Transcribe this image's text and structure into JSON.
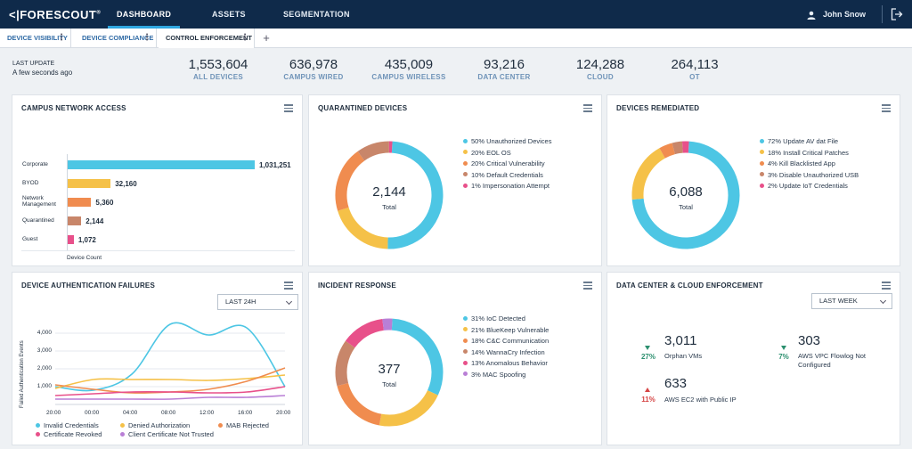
{
  "brand": {
    "name": "FORESCOUT"
  },
  "nav": {
    "items": [
      {
        "label": "DASHBOARD",
        "active": true
      },
      {
        "label": "ASSETS",
        "active": false
      },
      {
        "label": "SEGMENTATION",
        "active": false
      }
    ],
    "user": "John Snow"
  },
  "tabs": [
    {
      "label": "DEVICE VISIBILITY",
      "active": false
    },
    {
      "label": "DEVICE COMPLIANCE",
      "active": false
    },
    {
      "label": "CONTROL ENFORCEMENT",
      "active": true
    }
  ],
  "last_update": {
    "label": "LAST UPDATE",
    "value": "A few seconds ago"
  },
  "stats": [
    {
      "value": "1,553,604",
      "label": "ALL DEVICES"
    },
    {
      "value": "636,978",
      "label": "CAMPUS WIRED"
    },
    {
      "value": "435,009",
      "label": "CAMPUS WIRELESS"
    },
    {
      "value": "93,216",
      "label": "DATA CENTER"
    },
    {
      "value": "124,288",
      "label": "CLOUD"
    },
    {
      "value": "264,113",
      "label": "OT"
    }
  ],
  "panels": {
    "campus_network_access": {
      "title": "CAMPUS NETWORK ACCESS",
      "axis_label": "Device Count",
      "bars": [
        {
          "label": "Corporate",
          "value": 1031251,
          "display": "1,031,251",
          "color": "#4dc6e4"
        },
        {
          "label": "BYOD",
          "value": 32160,
          "display": "32,160",
          "color": "#f5c148"
        },
        {
          "label": "Network Management",
          "value": 5360,
          "display": "5,360",
          "color": "#f08c4f"
        },
        {
          "label": "Quarantined",
          "value": 2144,
          "display": "2,144",
          "color": "#c8866a"
        },
        {
          "label": "Guest",
          "value": 1072,
          "display": "1,072",
          "color": "#e8508a"
        }
      ]
    },
    "quarantined_devices": {
      "title": "QUARANTINED DEVICES",
      "total": "2,144",
      "total_label": "Total",
      "segments": [
        {
          "label": "50% Unauthorized Devices",
          "value": 50,
          "color": "#4dc6e4"
        },
        {
          "label": "20% EOL OS",
          "value": 20,
          "color": "#f5c148"
        },
        {
          "label": "20% Critical Vulnerability",
          "value": 20,
          "color": "#f08c4f"
        },
        {
          "label": "10% Default Credentials",
          "value": 10,
          "color": "#c8866a"
        },
        {
          "label": "1% Impersonation Attempt",
          "value": 1,
          "color": "#e8508a"
        }
      ]
    },
    "devices_remediated": {
      "title": "DEVICES REMEDIATED",
      "total": "6,088",
      "total_label": "Total",
      "segments": [
        {
          "label": "72% Update AV dat File",
          "value": 72,
          "color": "#4dc6e4"
        },
        {
          "label": "18% Install Critical Patches",
          "value": 18,
          "color": "#f5c148"
        },
        {
          "label": "4% Kill Blacklisted App",
          "value": 4,
          "color": "#f08c4f"
        },
        {
          "label": "3% Disable Unauthorized USB",
          "value": 3,
          "color": "#c8866a"
        },
        {
          "label": "2% Update IoT Credentials",
          "value": 2,
          "color": "#e8508a"
        }
      ]
    },
    "auth_failures": {
      "title": "DEVICE AUTHENTICATION FAILURES",
      "select": "LAST 24H",
      "y_axis_title": "Failed Authentication Events",
      "legend": [
        {
          "label": "Invalid Credentials",
          "color": "#4dc6e4"
        },
        {
          "label": "Denied Authorization",
          "color": "#f5c148"
        },
        {
          "label": "MAB Rejected",
          "color": "#f08c4f"
        },
        {
          "label": "Certificate Revoked",
          "color": "#e8508a"
        },
        {
          "label": "Client Certificate Not Trusted",
          "color": "#b97fd6"
        }
      ]
    },
    "incident_response": {
      "title": "INCIDENT RESPONSE",
      "total": "377",
      "total_label": "Total",
      "segments": [
        {
          "label": "31% IoC Detected",
          "value": 31,
          "color": "#4dc6e4"
        },
        {
          "label": "21% BlueKeep Vulnerable",
          "value": 21,
          "color": "#f5c148"
        },
        {
          "label": "18% C&C Communication",
          "value": 18,
          "color": "#f08c4f"
        },
        {
          "label": "14% WannaCry Infection",
          "value": 14,
          "color": "#c8866a"
        },
        {
          "label": "13% Anomalous Behavior",
          "value": 13,
          "color": "#e8508a"
        },
        {
          "label": "3% MAC Spoofing",
          "value": 3,
          "color": "#b97fd6"
        }
      ]
    },
    "dc_cloud": {
      "title": "DATA CENTER & CLOUD ENFORCEMENT",
      "select": "LAST WEEK",
      "metrics": [
        {
          "pct": "27%",
          "trend": "down",
          "value": "3,011",
          "label": "Orphan VMs",
          "color": "#2b8f6e"
        },
        {
          "pct": "7%",
          "trend": "down",
          "value": "303",
          "label": "AWS VPC Flowlog Not Configured",
          "color": "#2b8f6e"
        },
        {
          "pct": "11%",
          "trend": "up",
          "value": "633",
          "label": "AWS EC2 with Public IP",
          "color": "#d64545"
        }
      ]
    }
  },
  "chart_data": {
    "type": "line",
    "x": [
      "20:00",
      "00:00",
      "04:00",
      "08:00",
      "12:00",
      "16:00",
      "20:00"
    ],
    "ylim": [
      0,
      4500
    ],
    "yticks": [
      "1,000",
      "2,000",
      "3,000",
      "4,000"
    ],
    "ylabel": "Failed Authentication Events",
    "series": [
      {
        "name": "Invalid Credentials",
        "color": "#4dc6e4",
        "values": [
          1000,
          800,
          1700,
          4500,
          3900,
          4300,
          1000
        ]
      },
      {
        "name": "Denied Authorization",
        "color": "#f5c148",
        "values": [
          900,
          1400,
          1400,
          1400,
          1350,
          1450,
          1650
        ]
      },
      {
        "name": "MAB Rejected",
        "color": "#f08c4f",
        "values": [
          1100,
          850,
          650,
          700,
          850,
          1300,
          2050
        ]
      },
      {
        "name": "Certificate Revoked",
        "color": "#e8508a",
        "values": [
          500,
          600,
          700,
          700,
          650,
          700,
          1000
        ]
      },
      {
        "name": "Client Certificate Not Trusted",
        "color": "#b97fd6",
        "values": [
          300,
          300,
          300,
          300,
          400,
          400,
          500
        ]
      }
    ]
  }
}
